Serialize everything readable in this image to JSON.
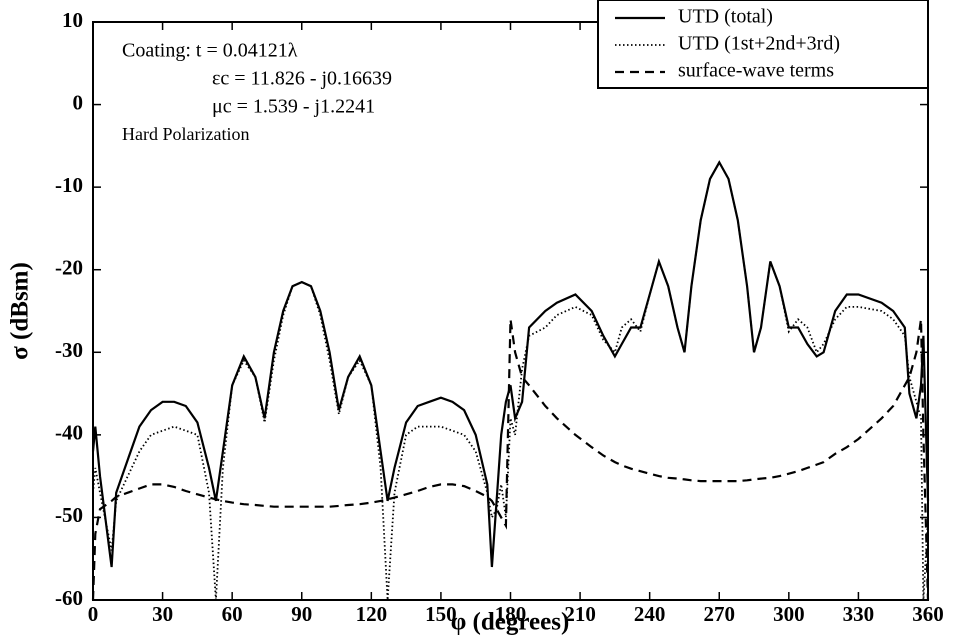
{
  "chart_data": {
    "type": "line",
    "xlabel": "φ (degrees)",
    "ylabel": "σ (dBsm)",
    "annotations": [
      "Coating:  t = 0.04121λ",
      "εc = 11.826 - j0.16639",
      "μc = 1.539 - j1.2241",
      "Hard Polarization"
    ],
    "x": [
      0,
      1,
      3,
      8,
      10,
      15,
      20,
      25,
      30,
      35,
      40,
      45,
      50,
      53,
      56,
      60,
      65,
      70,
      74,
      78,
      82,
      86,
      90,
      94,
      98,
      102,
      106,
      110,
      115,
      120,
      124,
      127,
      130,
      135,
      140,
      145,
      150,
      155,
      160,
      165,
      170,
      172,
      174,
      176,
      178,
      180,
      182,
      185,
      188,
      195,
      200,
      208,
      215,
      220,
      225,
      228,
      232,
      236,
      240,
      244,
      248,
      252,
      255,
      258,
      262,
      266,
      270,
      274,
      278,
      282,
      285,
      288,
      292,
      296,
      300,
      304,
      308,
      312,
      315,
      320,
      325,
      330,
      340,
      345,
      350,
      352,
      355,
      357,
      358,
      360
    ],
    "series": [
      {
        "name": "UTD (total)",
        "color": "#000000",
        "style": "solid",
        "values": [
          -42,
          -39,
          -45,
          -56,
          -47,
          -43,
          -39,
          -37,
          -36,
          -36,
          -36.5,
          -38.5,
          -44,
          -48,
          -42,
          -34,
          -30.5,
          -33,
          -38,
          -30,
          -25,
          -22,
          -21.5,
          -22,
          -25,
          -30,
          -37,
          -33,
          -30.5,
          -34,
          -42,
          -48,
          -44,
          -38.5,
          -36.5,
          -36,
          -35.5,
          -36,
          -37,
          -40,
          -46,
          -56,
          -48,
          -40,
          -36,
          -34,
          -38,
          -36,
          -27,
          -25,
          -24,
          -23,
          -25,
          -28,
          -30.5,
          -29,
          -27,
          -27,
          -23,
          -19,
          -22,
          -27,
          -30,
          -22,
          -14,
          -9,
          -7,
          -9,
          -14,
          -22,
          -30,
          -27,
          -19,
          -22,
          -27,
          -27,
          -29,
          -30.5,
          -30,
          -25,
          -23,
          -23,
          -24,
          -25,
          -27,
          -35,
          -38,
          -34,
          -28,
          -48
        ]
      },
      {
        "name": "UTD (1st+2nd+3rd)",
        "color": "#000000",
        "style": "dotted",
        "values": [
          -47,
          -44,
          -47,
          -54,
          -48,
          -45,
          -42,
          -40,
          -39.5,
          -39,
          -39.5,
          -40,
          -47,
          -60,
          -44,
          -34,
          -31,
          -33,
          -38.5,
          -31,
          -25.5,
          -22,
          -21.5,
          -22,
          -25.5,
          -31,
          -37.5,
          -33,
          -31,
          -34,
          -44,
          -60,
          -47,
          -40,
          -39,
          -39,
          -39,
          -39.5,
          -40,
          -42,
          -47,
          -50,
          -49,
          -46,
          -50,
          -38,
          -40,
          -32,
          -28,
          -27,
          -25.5,
          -24.5,
          -25.5,
          -28.5,
          -30,
          -27,
          -26,
          -27.5,
          -23,
          -19,
          -22,
          -27,
          -30,
          -22,
          -14,
          -9,
          -7,
          -9,
          -14,
          -22,
          -30,
          -27,
          -19,
          -22,
          -27.5,
          -26,
          -27,
          -30,
          -29,
          -26,
          -24.5,
          -24.5,
          -25,
          -26,
          -28,
          -33,
          -36,
          -38,
          -60,
          -50
        ]
      },
      {
        "name": "surface-wave terms",
        "color": "#000000",
        "style": "dashed",
        "values": [
          -60,
          -52,
          -49,
          -48,
          -47.5,
          -47,
          -46.5,
          -46,
          -46,
          -46.3,
          -46.8,
          -47.2,
          -47.6,
          -47.8,
          -48,
          -48.2,
          -48.4,
          -48.5,
          -48.6,
          -48.7,
          -48.7,
          -48.7,
          -48.7,
          -48.7,
          -48.7,
          -48.7,
          -48.6,
          -48.5,
          -48.4,
          -48.2,
          -48,
          -47.8,
          -47.6,
          -47.2,
          -46.8,
          -46.3,
          -46,
          -46,
          -46.2,
          -46.8,
          -47.5,
          -48,
          -49,
          -50,
          -51,
          -26,
          -30,
          -33,
          -34,
          -36.5,
          -38,
          -40,
          -41.5,
          -42.5,
          -43.3,
          -43.7,
          -44.1,
          -44.4,
          -44.7,
          -45,
          -45.2,
          -45.3,
          -45.4,
          -45.5,
          -45.6,
          -45.6,
          -45.6,
          -45.6,
          -45.6,
          -45.5,
          -45.4,
          -45.3,
          -45.2,
          -45,
          -44.7,
          -44.4,
          -44,
          -43.6,
          -43.3,
          -42.3,
          -41.5,
          -40.5,
          -38,
          -36.5,
          -34,
          -33,
          -30,
          -26,
          -40,
          -60
        ]
      }
    ],
    "xlim": [
      0,
      360
    ],
    "xticks": [
      0,
      30,
      60,
      90,
      120,
      150,
      180,
      210,
      240,
      270,
      300,
      330,
      360
    ],
    "ylim": [
      -60,
      10
    ],
    "yticks": [
      -60,
      -50,
      -40,
      -30,
      -20,
      -10,
      0,
      10
    ],
    "legend": "top-right",
    "grid": false
  }
}
